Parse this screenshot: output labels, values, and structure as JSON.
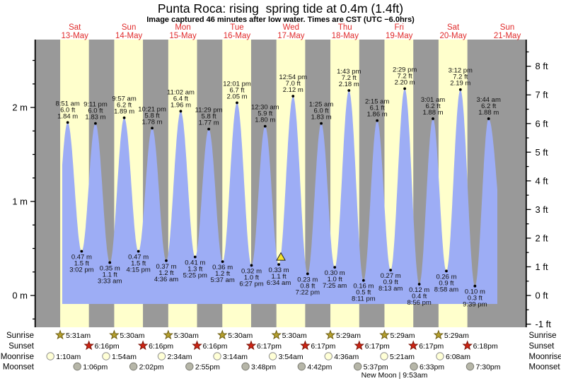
{
  "title": "Punta Roca: rising  spring tide at 0.4m (1.4ft)",
  "subtitle": "Image captured 46 minutes after low water. Times are CST (UTC −6.0hrs)",
  "colors": {
    "background": "#ffffff",
    "night_band": "#999999",
    "day_band": "#ffffcc",
    "tide_area": "#9dadf5",
    "day_label_red": "#e02b2b",
    "axis_black": "#000000",
    "tide_text": "#111111",
    "current_marker_fill": "#f5e32b",
    "sunrise_star": "#b5a02e",
    "sunrise_star_stroke": "#6e5e12",
    "sunset_star": "#cf2313",
    "sunset_star_stroke": "#7c1509",
    "moonrise_circle": "#ffffd6",
    "moonrise_circle_stroke": "#919191",
    "moonset_circle": "#b6b6a8",
    "moonset_circle_stroke": "#7d7d74"
  },
  "chart_data": {
    "type": "area",
    "title": "Punta Roca: rising  spring tide at 0.4m (1.4ft)",
    "x_axis_days": [
      {
        "name": "Sat",
        "date": "13-May"
      },
      {
        "name": "Sun",
        "date": "14-May"
      },
      {
        "name": "Mon",
        "date": "15-May"
      },
      {
        "name": "Tue",
        "date": "16-May"
      },
      {
        "name": "Wed",
        "date": "17-May"
      },
      {
        "name": "Thu",
        "date": "18-May"
      },
      {
        "name": "Fri",
        "date": "19-May"
      },
      {
        "name": "Sat",
        "date": "20-May"
      },
      {
        "name": "Sun",
        "date": "21-May"
      }
    ],
    "y_axis_left": {
      "unit": "m",
      "major_ticks": [
        0,
        1,
        2
      ],
      "minor_step": 0.25
    },
    "y_axis_right": {
      "unit": "ft",
      "major_ticks": [
        -1,
        0,
        1,
        2,
        3,
        4,
        5,
        6,
        7,
        8
      ],
      "minor_step": 0.5
    },
    "events": [
      {
        "day": 0,
        "time": "8:51 am",
        "type": "high",
        "m": "1.84",
        "ft": "6.0"
      },
      {
        "day": 0,
        "time": "3:02 pm",
        "type": "low",
        "m": "0.47",
        "ft": "1.5"
      },
      {
        "day": 0,
        "time": "9:11 pm",
        "type": "high",
        "m": "1.83",
        "ft": "6.0"
      },
      {
        "day": 1,
        "time": "3:33 am",
        "type": "low",
        "m": "0.35",
        "ft": "1.1"
      },
      {
        "day": 1,
        "time": "9:57 am",
        "type": "high",
        "m": "1.89",
        "ft": "6.2"
      },
      {
        "day": 1,
        "time": "4:15 pm",
        "type": "low",
        "m": "0.47",
        "ft": "1.5"
      },
      {
        "day": 1,
        "time": "10:21 pm",
        "type": "high",
        "m": "1.78",
        "ft": "5.8"
      },
      {
        "day": 2,
        "time": "4:36 am",
        "type": "low",
        "m": "0.37",
        "ft": "1.2"
      },
      {
        "day": 2,
        "time": "11:02 am",
        "type": "high",
        "m": "1.96",
        "ft": "6.4"
      },
      {
        "day": 2,
        "time": "5:25 pm",
        "type": "low",
        "m": "0.41",
        "ft": "1.3"
      },
      {
        "day": 2,
        "time": "11:29 pm",
        "type": "high",
        "m": "1.77",
        "ft": "5.8"
      },
      {
        "day": 3,
        "time": "5:37 am",
        "type": "low",
        "m": "0.36",
        "ft": "1.2"
      },
      {
        "day": 3,
        "time": "12:01 pm",
        "type": "high",
        "m": "2.05",
        "ft": "6.7"
      },
      {
        "day": 3,
        "time": "6:27 pm",
        "type": "low",
        "m": "0.32",
        "ft": "1.0"
      },
      {
        "day": 4,
        "time": "12:30 am",
        "type": "high",
        "m": "1.80",
        "ft": "5.9"
      },
      {
        "day": 4,
        "time": "6:34 am",
        "type": "low",
        "m": "0.33",
        "ft": "1.1",
        "current": true
      },
      {
        "day": 4,
        "time": "12:54 pm",
        "type": "high",
        "m": "2.12",
        "ft": "7.0"
      },
      {
        "day": 4,
        "time": "7:22 pm",
        "type": "low",
        "m": "0.23",
        "ft": "0.8"
      },
      {
        "day": 5,
        "time": "1:25 am",
        "type": "high",
        "m": "1.83",
        "ft": "6.0"
      },
      {
        "day": 5,
        "time": "7:25 am",
        "type": "low",
        "m": "0.30",
        "ft": "1.0"
      },
      {
        "day": 5,
        "time": "1:43 pm",
        "type": "high",
        "m": "2.18",
        "ft": "7.2"
      },
      {
        "day": 5,
        "time": "8:11 pm",
        "type": "low",
        "m": "0.16",
        "ft": "0.5"
      },
      {
        "day": 6,
        "time": "2:15 am",
        "type": "high",
        "m": "1.86",
        "ft": "6.1"
      },
      {
        "day": 6,
        "time": "8:13 am",
        "type": "low",
        "m": "0.27",
        "ft": "0.9"
      },
      {
        "day": 6,
        "time": "2:29 pm",
        "type": "high",
        "m": "2.20",
        "ft": "7.2"
      },
      {
        "day": 6,
        "time": "8:56 pm",
        "type": "low",
        "m": "0.12",
        "ft": "0.4"
      },
      {
        "day": 7,
        "time": "3:01 am",
        "type": "high",
        "m": "1.88",
        "ft": "6.2"
      },
      {
        "day": 7,
        "time": "8:58 am",
        "type": "low",
        "m": "0.26",
        "ft": "0.9"
      },
      {
        "day": 7,
        "time": "3:12 pm",
        "type": "high",
        "m": "2.19",
        "ft": "7.2"
      },
      {
        "day": 7,
        "time": "9:39 pm",
        "type": "low",
        "m": "0.10",
        "ft": "0.3"
      },
      {
        "day": 8,
        "time": "3:44 am",
        "type": "high",
        "m": "1.88",
        "ft": "6.2"
      }
    ]
  },
  "astro": {
    "row_labels": [
      "Sunrise",
      "Sunset",
      "Moonrise",
      "Moonset"
    ],
    "sunrise": [
      "5:31am",
      "5:30am",
      "5:30am",
      "5:30am",
      "5:30am",
      "5:29am",
      "5:29am",
      "5:29am"
    ],
    "sunset": [
      "6:16pm",
      "6:16pm",
      "6:16pm",
      "6:17pm",
      "6:17pm",
      "6:17pm",
      "6:17pm",
      "6:18pm"
    ],
    "moonrise": [
      "1:10am",
      "1:54am",
      "2:34am",
      "3:14am",
      "3:54am",
      "4:36am",
      "5:21am",
      "6:08am"
    ],
    "moonset": [
      "1:06pm",
      "2:02pm",
      "2:55pm",
      "3:48pm",
      "4:42pm",
      "5:37pm",
      "6:33pm",
      "7:30pm"
    ],
    "new_moon": {
      "label": "New Moon | 9:53am",
      "day_index": 6,
      "time": "9:53am"
    }
  }
}
